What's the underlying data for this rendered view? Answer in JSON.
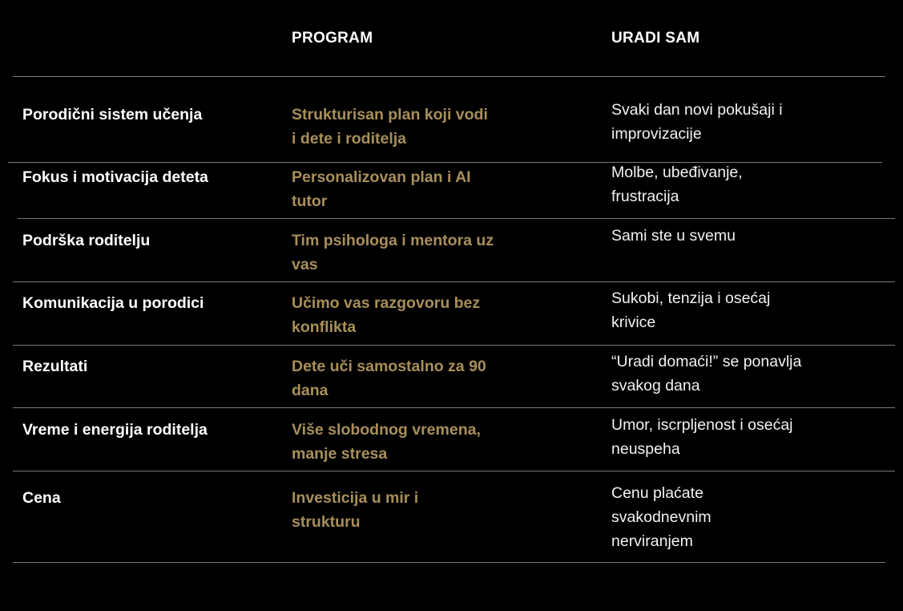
{
  "header": {
    "program": "PROGRAM",
    "uradi_sam": "URADI SAM"
  },
  "colors": {
    "background": "#000000",
    "accent_gold": "#a88f5a",
    "divider": "#7a7a7a"
  },
  "rows": [
    {
      "feature": "Porodični sistem učenja",
      "program": "Strukturisan plan koji vodi i dete i roditelja",
      "uradi_sam": "Svaki dan novi pokušaji i improvizacije"
    },
    {
      "feature": "Fokus i motivacija deteta",
      "program": "Personalizovan plan i AI tutor",
      "uradi_sam": "Molbe, ubeđivanje, frustracija"
    },
    {
      "feature": "Podrška roditelju",
      "program": "Tim psihologa i mentora uz vas",
      "uradi_sam": "Sami ste u svemu"
    },
    {
      "feature": "Komunikacija u porodici",
      "program": "Učimo vas razgovoru bez konflikta",
      "uradi_sam": "Sukobi, tenzija i osećaj krivice"
    },
    {
      "feature": "Rezultati",
      "program": "Dete uči samostalno za 90 dana",
      "uradi_sam": "“Uradi domaći!” se ponavlja svakog dana"
    },
    {
      "feature": "Vreme i energija roditelja",
      "program": "Više slobodnog vremena, manje stresa",
      "uradi_sam": "Umor, iscrpljenost i osećaj neuspeha"
    },
    {
      "feature": "Cena",
      "program": "Investicija u mir i strukturu",
      "uradi_sam": "Cenu plaćate svakodnevnim nerviranjem"
    }
  ]
}
